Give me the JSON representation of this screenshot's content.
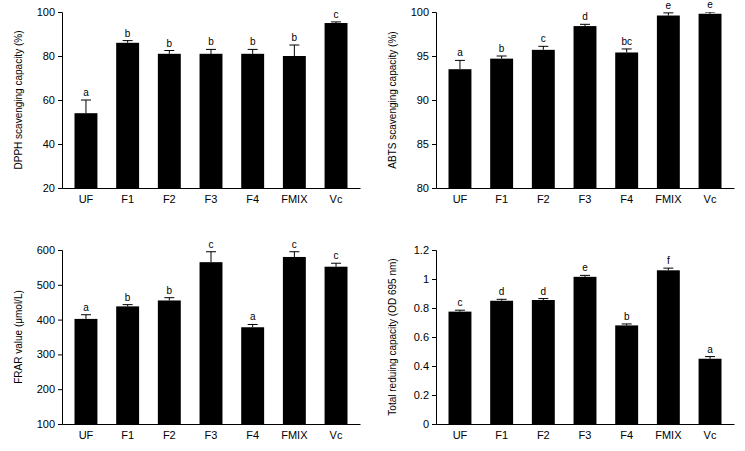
{
  "chart_data": [
    {
      "type": "bar",
      "y_label": "DPPH scavenging capacity (%)",
      "categories": [
        "UF",
        "F1",
        "F2",
        "F3",
        "F4",
        "FMIX",
        "Vc"
      ],
      "values": [
        54,
        86,
        81,
        81,
        81,
        80,
        95
      ],
      "errors": [
        6,
        1,
        1.5,
        2,
        2,
        5,
        0.5
      ],
      "annotations": [
        "a",
        "b",
        "b",
        "b",
        "b",
        "b",
        "c"
      ],
      "color": "#000000",
      "ylim": [
        20,
        100
      ],
      "yticks": [
        20,
        40,
        60,
        80,
        100
      ]
    },
    {
      "type": "bar",
      "y_label": "ABTS scavenging capacity (%)",
      "categories": [
        "UF",
        "F1",
        "F2",
        "F3",
        "F4",
        "FMIX",
        "Vc"
      ],
      "values": [
        93.5,
        94.7,
        95.7,
        98.4,
        95.4,
        99.6,
        99.8
      ],
      "errors": [
        1,
        0.3,
        0.4,
        0.2,
        0.4,
        0.3,
        0.2
      ],
      "annotations": [
        "a",
        "b",
        "c",
        "d",
        "bc",
        "e",
        "e"
      ],
      "color": "#000000",
      "ylim": [
        80,
        100
      ],
      "yticks": [
        80,
        85,
        90,
        95,
        100
      ]
    },
    {
      "type": "bar",
      "y_label": "FRAR value (μmol/L)",
      "categories": [
        "UF",
        "F1",
        "F2",
        "F3",
        "F4",
        "FMIX",
        "Vc"
      ],
      "values": [
        402,
        438,
        455,
        565,
        378,
        580,
        552
      ],
      "errors": [
        12,
        5,
        8,
        30,
        8,
        15,
        10
      ],
      "annotations": [
        "a",
        "b",
        "b",
        "c",
        "a",
        "c",
        "c"
      ],
      "color": "#000000",
      "ylim": [
        100,
        600
      ],
      "yticks": [
        100,
        200,
        300,
        400,
        500,
        600
      ]
    },
    {
      "type": "bar",
      "y_label": "Total reduing capacity (OD 695 nm)",
      "categories": [
        "UF",
        "F1",
        "F2",
        "F3",
        "F4",
        "FMIX",
        "Vc"
      ],
      "values": [
        0.775,
        0.85,
        0.855,
        1.015,
        0.68,
        1.06,
        0.45
      ],
      "errors": [
        0.01,
        0.01,
        0.01,
        0.01,
        0.01,
        0.015,
        0.015
      ],
      "annotations": [
        "c",
        "d",
        "d",
        "e",
        "b",
        "f",
        "a"
      ],
      "color": "#000000",
      "ylim": [
        0,
        1.2
      ],
      "yticks": [
        0,
        0.2,
        0.4,
        0.6,
        0.8,
        1,
        1.2
      ]
    }
  ]
}
